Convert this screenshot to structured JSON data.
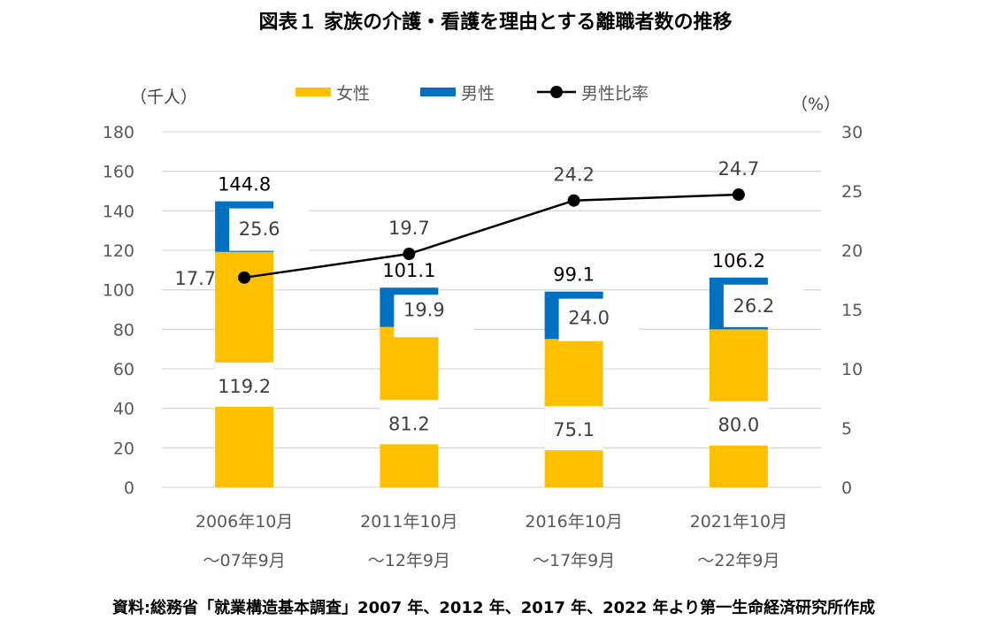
{
  "chart_data": {
    "type": "bar",
    "subtype": "stacked-bar-with-line",
    "title": "図表１ 家族の介護・看護を理由とする離職者数の推移",
    "ylabel_left": "（千人）",
    "ylabel_right": "（%）",
    "ylim_left": [
      0,
      180
    ],
    "yticks_left": [
      0,
      20,
      40,
      60,
      80,
      100,
      120,
      140,
      160,
      180
    ],
    "ylim_right": [
      0,
      30
    ],
    "yticks_right": [
      0,
      5,
      10,
      15,
      20,
      25,
      30
    ],
    "grid": true,
    "legend_position": "top",
    "categories": [
      [
        "2006年10月",
        "～07年9月"
      ],
      [
        "2011年10月",
        "～12年9月"
      ],
      [
        "2016年10月",
        "～17年9月"
      ],
      [
        "2021年10月",
        "～22年9月"
      ]
    ],
    "series": [
      {
        "name": "女性",
        "type": "bar",
        "axis": "left",
        "color": "#FFC000",
        "values": [
          119.2,
          81.2,
          75.1,
          80.0
        ]
      },
      {
        "name": "男性",
        "type": "bar",
        "axis": "left",
        "color": "#0070C0",
        "values": [
          25.6,
          19.9,
          24.0,
          26.2
        ]
      },
      {
        "name": "男性比率",
        "type": "line",
        "axis": "right",
        "color": "#000000",
        "values": [
          17.7,
          19.7,
          24.2,
          24.7
        ]
      }
    ],
    "totals": [
      144.8,
      101.1,
      99.1,
      106.2
    ],
    "source": "資料:総務省「就業構造基本調査」2007 年、2012 年、2017 年、2022 年より第一生命経済研究所作成"
  }
}
